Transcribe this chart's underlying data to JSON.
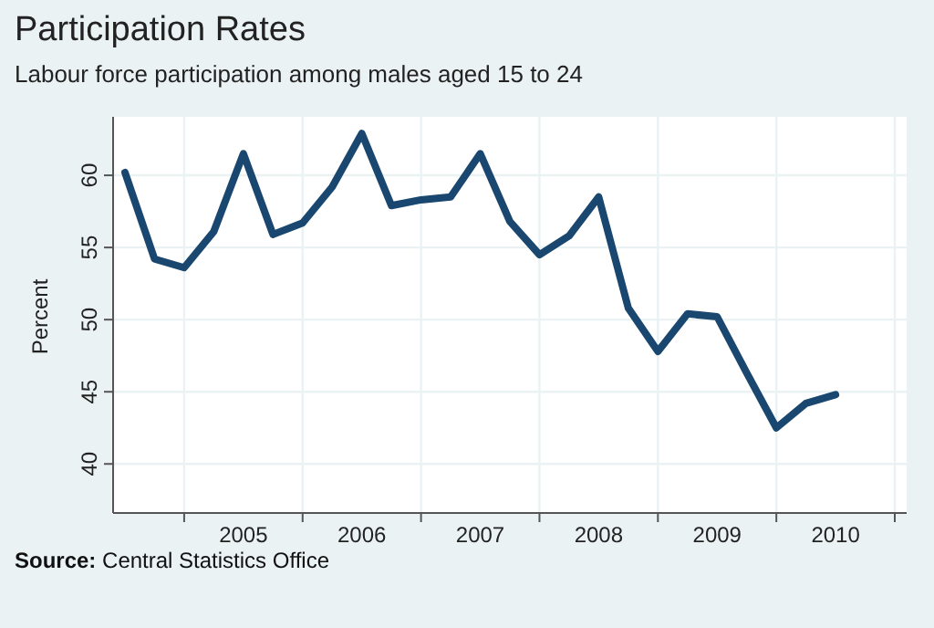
{
  "chart_data": {
    "type": "line",
    "title": "Participation Rates",
    "subtitle": "Labour force participation among males aged 15 to 24",
    "ylabel": "Percent",
    "x": [
      2004.5,
      2004.75,
      2005,
      2005.25,
      2005.5,
      2005.75,
      2006,
      2006.25,
      2006.5,
      2006.75,
      2007,
      2007.25,
      2007.5,
      2007.75,
      2008,
      2008.25,
      2008.5,
      2008.75,
      2009,
      2009.25,
      2009.5,
      2009.75,
      2010,
      2010.25,
      2010.5
    ],
    "series": [
      {
        "color": "#1a476f",
        "values": [
          60.2,
          54.2,
          53.6,
          56.1,
          61.5,
          55.9,
          56.7,
          59.2,
          62.9,
          57.9,
          58.3,
          58.5,
          61.5,
          56.8,
          54.5,
          55.8,
          58.5,
          50.8,
          47.8,
          50.4,
          50.2,
          46.3,
          42.5,
          44.2,
          44.8
        ]
      }
    ],
    "xlim": [
      2004.4,
      2011.1
    ],
    "xticks": [
      {
        "value": 2005,
        "label": null
      },
      {
        "value": 2005.5,
        "label": "2005"
      },
      {
        "value": 2006,
        "label": null
      },
      {
        "value": 2006.5,
        "label": "2006"
      },
      {
        "value": 2007,
        "label": null
      },
      {
        "value": 2007.5,
        "label": "2007"
      },
      {
        "value": 2008,
        "label": null
      },
      {
        "value": 2008.5,
        "label": "2008"
      },
      {
        "value": 2009,
        "label": null
      },
      {
        "value": 2009.5,
        "label": "2009"
      },
      {
        "value": 2010,
        "label": null
      },
      {
        "value": 2010.5,
        "label": "2010"
      },
      {
        "value": 2011,
        "label": null
      }
    ],
    "ylim": [
      36.6,
      63.8
    ],
    "yticks": [
      40,
      45,
      50,
      55,
      60
    ],
    "grid": true,
    "marker": "none",
    "line_style": "solid",
    "annotations": [
      "Source: Central Statistics Office"
    ]
  }
}
